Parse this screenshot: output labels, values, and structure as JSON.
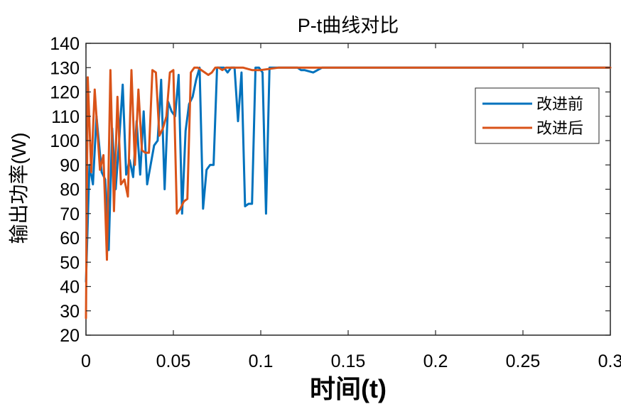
{
  "chart_data": {
    "type": "line",
    "title": "P-t曲线对比",
    "xlabel": "时间(t)",
    "ylabel": "输出功率(W)",
    "xlim": [
      0,
      0.3
    ],
    "ylim": [
      20,
      140
    ],
    "xticks": [
      0,
      0.05,
      0.1,
      0.15,
      0.2,
      0.25,
      0.3
    ],
    "xtick_labels": [
      "0",
      "0.05",
      "0.1",
      "0.15",
      "0.2",
      "0.25",
      "0.3"
    ],
    "yticks": [
      20,
      30,
      40,
      50,
      60,
      70,
      80,
      90,
      100,
      110,
      120,
      130,
      140
    ],
    "ytick_labels": [
      "20",
      "30",
      "40",
      "50",
      "60",
      "70",
      "80",
      "90",
      "100",
      "110",
      "120",
      "130",
      "140"
    ],
    "grid": false,
    "legend_position": "top-right",
    "series": [
      {
        "name": "改进前",
        "color": "#0072BD",
        "x": [
          0,
          0.002,
          0.004,
          0.006,
          0.009,
          0.011,
          0.013,
          0.015,
          0.017,
          0.019,
          0.021,
          0.023,
          0.025,
          0.027,
          0.029,
          0.031,
          0.033,
          0.035,
          0.037,
          0.039,
          0.041,
          0.043,
          0.045,
          0.047,
          0.049,
          0.051,
          0.053,
          0.055,
          0.057,
          0.059,
          0.061,
          0.063,
          0.065,
          0.067,
          0.069,
          0.071,
          0.073,
          0.075,
          0.077,
          0.079,
          0.081,
          0.083,
          0.085,
          0.087,
          0.089,
          0.091,
          0.093,
          0.095,
          0.097,
          0.099,
          0.101,
          0.103,
          0.105,
          0.107,
          0.109,
          0.111,
          0.113,
          0.115,
          0.117,
          0.119,
          0.121,
          0.123,
          0.125,
          0.13,
          0.135,
          0.14,
          0.3
        ],
        "y": [
          42,
          90,
          82,
          110,
          87,
          84,
          55,
          105,
          80,
          100,
          123,
          86,
          92,
          85,
          108,
          86,
          112,
          82,
          90,
          98,
          100,
          125,
          80,
          116,
          112,
          110,
          127,
          70,
          104,
          115,
          118,
          125,
          130,
          72,
          88,
          90,
          90,
          130,
          130,
          130,
          128,
          130,
          130,
          108,
          128,
          73,
          74,
          74,
          130,
          130,
          128,
          70,
          130,
          130,
          130,
          130,
          130,
          130,
          130,
          130,
          130,
          129,
          129,
          128,
          130,
          130,
          130
        ]
      },
      {
        "name": "改进后",
        "color": "#D95319",
        "x": [
          0,
          0.001,
          0.003,
          0.005,
          0.008,
          0.01,
          0.012,
          0.014,
          0.016,
          0.018,
          0.02,
          0.022,
          0.024,
          0.026,
          0.028,
          0.03,
          0.032,
          0.034,
          0.036,
          0.038,
          0.04,
          0.042,
          0.044,
          0.046,
          0.048,
          0.05,
          0.052,
          0.054,
          0.056,
          0.058,
          0.06,
          0.062,
          0.064,
          0.066,
          0.068,
          0.07,
          0.072,
          0.074,
          0.076,
          0.078,
          0.08,
          0.082,
          0.085,
          0.09,
          0.095,
          0.1,
          0.11,
          0.12,
          0.13,
          0.14,
          0.3
        ],
        "y": [
          27,
          126,
          87,
          121,
          88,
          94,
          51,
          129,
          71,
          118,
          82,
          84,
          77,
          129,
          90,
          121,
          96,
          95,
          95,
          129,
          128,
          102,
          105,
          110,
          128,
          129,
          70,
          72,
          75,
          76,
          128,
          130,
          130,
          129,
          128,
          127,
          128,
          130,
          130,
          129,
          130,
          130,
          130,
          130,
          129,
          129,
          130,
          130,
          130,
          130,
          130
        ]
      }
    ]
  }
}
